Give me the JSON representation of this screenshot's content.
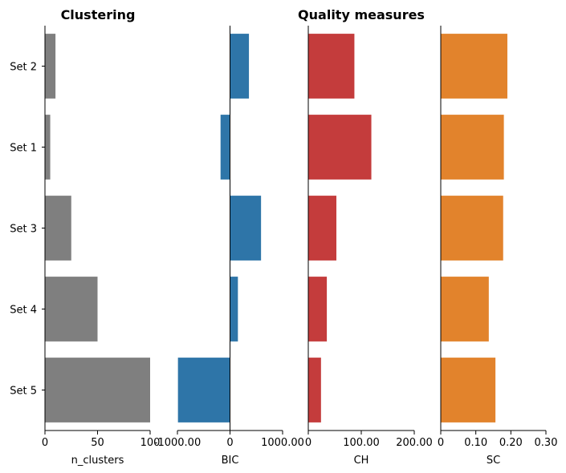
{
  "titles": {
    "left": "Clustering",
    "right": "Quality measures"
  },
  "chart_data": {
    "type": "bar",
    "orientation": "horizontal",
    "categories": [
      "Set 2",
      "Set 1",
      "Set 3",
      "Set 4",
      "Set 5"
    ],
    "panels": [
      {
        "name": "n_clusters",
        "xlabel": "n_clusters",
        "color": "#7f7f7f",
        "xlim": [
          0,
          100
        ],
        "ticks": [
          0,
          50,
          100
        ],
        "tick_labels": [
          "0",
          "50",
          "100"
        ],
        "values": [
          10,
          5,
          25,
          50,
          100
        ]
      },
      {
        "name": "BIC",
        "xlabel": "BIC",
        "color": "#2e75a8",
        "xlim": [
          -1000,
          1000
        ],
        "ticks": [
          -1000,
          0,
          1000
        ],
        "tick_labels": [
          "-1000.00",
          "0",
          "1000.00"
        ],
        "values": [
          360,
          -180,
          590,
          150,
          -990
        ]
      },
      {
        "name": "CH",
        "xlabel": "CH",
        "color": "#c43c3c",
        "xlim": [
          0,
          200
        ],
        "ticks": [
          0,
          100,
          200
        ],
        "tick_labels": [
          "0",
          "100.00",
          "200.00"
        ],
        "values": [
          87,
          119,
          53,
          35,
          24
        ]
      },
      {
        "name": "SC",
        "xlabel": "SC",
        "color": "#e2832c",
        "xlim": [
          0,
          0.3
        ],
        "ticks": [
          0,
          0.1,
          0.2,
          0.3
        ],
        "tick_labels": [
          "0",
          "0.10",
          "0.20",
          "0.30"
        ],
        "values": [
          0.19,
          0.18,
          0.178,
          0.137,
          0.156
        ]
      }
    ],
    "grid": false,
    "legend": "none"
  }
}
